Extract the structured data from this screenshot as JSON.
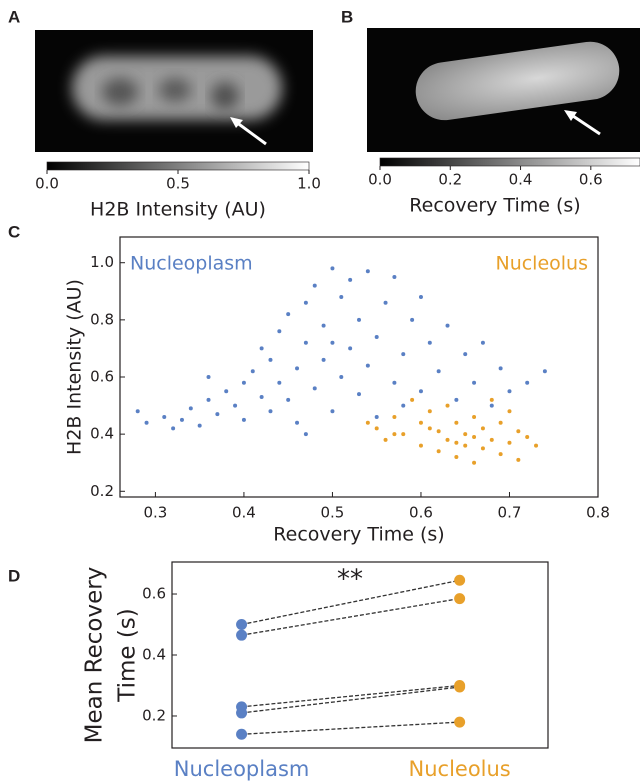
{
  "chart_data": [
    {
      "type": "image",
      "panel": "A",
      "colorbar_label": "H2B Intensity (AU)",
      "clim": [
        0,
        1
      ],
      "cticks": [
        {
          "value": 0,
          "label": "0.0"
        },
        0.5,
        {
          "value": 1,
          "label": "1.0"
        }
      ]
    },
    {
      "type": "image",
      "panel": "B",
      "colorbar_label": "Recovery Time (s)",
      "clim": [
        0,
        0.74
      ],
      "cticks": [
        {
          "value": 0,
          "label": "0.0"
        },
        0.2,
        0.4,
        0.6
      ]
    },
    {
      "type": "scatter",
      "panel": "C",
      "xlabel": "Recovery Time (s)",
      "ylabel": "H2B Intensity (AU)",
      "xlim": [
        0.26,
        0.8
      ],
      "ylim": [
        0.18,
        1.09
      ],
      "xticks": [
        0.3,
        0.4,
        0.5,
        0.6,
        0.7,
        0.8
      ],
      "yticks": [
        0.2,
        0.4,
        0.6,
        0.8,
        {
          "value": 1,
          "label": "1.0"
        }
      ],
      "series": [
        {
          "name": "Nucleoplasm",
          "color": "#5a80c4",
          "x": [
            0.28,
            0.29,
            0.31,
            0.33,
            0.34,
            0.35,
            0.36,
            0.37,
            0.38,
            0.39,
            0.4,
            0.4,
            0.41,
            0.42,
            0.42,
            0.43,
            0.43,
            0.44,
            0.44,
            0.45,
            0.45,
            0.46,
            0.46,
            0.47,
            0.47,
            0.48,
            0.48,
            0.49,
            0.49,
            0.5,
            0.5,
            0.51,
            0.51,
            0.52,
            0.52,
            0.53,
            0.53,
            0.54,
            0.54,
            0.55,
            0.55,
            0.56,
            0.57,
            0.57,
            0.58,
            0.59,
            0.6,
            0.6,
            0.61,
            0.62,
            0.63,
            0.64,
            0.65,
            0.66,
            0.67,
            0.68,
            0.69,
            0.7,
            0.72,
            0.74,
            0.32,
            0.47,
            0.58,
            0.36,
            0.5
          ],
          "values": [
            0.48,
            0.44,
            0.46,
            0.45,
            0.49,
            0.43,
            0.52,
            0.47,
            0.55,
            0.5,
            0.58,
            0.45,
            0.62,
            0.53,
            0.7,
            0.48,
            0.66,
            0.58,
            0.76,
            0.52,
            0.82,
            0.63,
            0.44,
            0.72,
            0.86,
            0.56,
            0.92,
            0.66,
            0.78,
            0.48,
            0.98,
            0.6,
            0.88,
            0.7,
            0.94,
            0.54,
            0.8,
            0.64,
            0.97,
            0.74,
            0.46,
            0.86,
            0.58,
            0.95,
            0.68,
            0.8,
            0.55,
            0.88,
            0.72,
            0.62,
            0.78,
            0.52,
            0.68,
            0.58,
            0.72,
            0.5,
            0.63,
            0.55,
            0.58,
            0.62,
            0.42,
            0.4,
            0.5,
            0.6,
            0.72
          ]
        },
        {
          "name": "Nucleolus",
          "color": "#e8a02a",
          "x": [
            0.55,
            0.56,
            0.57,
            0.58,
            0.59,
            0.6,
            0.6,
            0.61,
            0.62,
            0.62,
            0.63,
            0.63,
            0.64,
            0.64,
            0.65,
            0.65,
            0.66,
            0.66,
            0.67,
            0.67,
            0.68,
            0.68,
            0.69,
            0.69,
            0.7,
            0.7,
            0.71,
            0.71,
            0.72,
            0.73,
            0.66,
            0.64,
            0.61,
            0.57,
            0.54
          ],
          "values": [
            0.42,
            0.38,
            0.46,
            0.4,
            0.52,
            0.36,
            0.44,
            0.48,
            0.34,
            0.41,
            0.38,
            0.5,
            0.32,
            0.44,
            0.36,
            0.4,
            0.3,
            0.46,
            0.35,
            0.42,
            0.38,
            0.52,
            0.33,
            0.44,
            0.37,
            0.48,
            0.31,
            0.41,
            0.39,
            0.36,
            0.39,
            0.37,
            0.42,
            0.4,
            0.44
          ]
        }
      ]
    },
    {
      "type": "paired",
      "panel": "D",
      "ylabel": [
        "Mean Recovery",
        "Time (s)"
      ],
      "categories": [
        "Nucleoplasm",
        "Nucleolus"
      ],
      "colors": [
        "#5a80c4",
        "#e8a02a"
      ],
      "pairs": [
        [
          0.5,
          0.645
        ],
        [
          0.465,
          0.585
        ],
        [
          0.23,
          0.3
        ],
        [
          0.21,
          0.295
        ],
        [
          0.14,
          0.18
        ]
      ],
      "annotation": "**",
      "ylim": [
        0.095,
        0.705
      ],
      "yticks": [
        0.2,
        0.4,
        0.6
      ]
    }
  ]
}
